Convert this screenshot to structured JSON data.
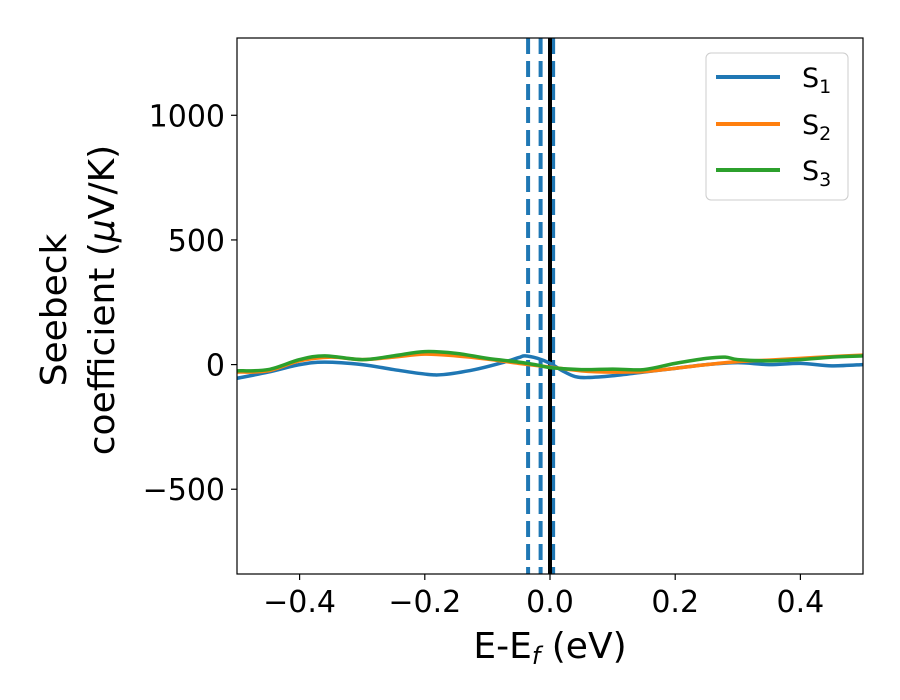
{
  "chart_data": {
    "type": "line",
    "xlabel": {
      "main": "E-E",
      "sub": "f",
      "tail": " (eV)"
    },
    "ylabel": {
      "line1": "Seebeck",
      "line2_pre": "coefficient  (",
      "line2_mu": "μ",
      "line2_post": "V/K)"
    },
    "xlim": [
      -0.5,
      0.5
    ],
    "ylim": [
      -840,
      1310
    ],
    "xticks": [
      -0.4,
      -0.2,
      0.0,
      0.2,
      0.4
    ],
    "xtick_labels": [
      "−0.4",
      "−0.2",
      "0.0",
      "0.2",
      "0.4"
    ],
    "yticks": [
      -500,
      0,
      500,
      1000
    ],
    "ytick_labels": [
      "−500",
      "0",
      "500",
      "1000"
    ],
    "legend_position": "top-right",
    "series": [
      {
        "name": "S",
        "sub": "1",
        "color": "#1f77b4",
        "x": [
          -0.5,
          -0.45,
          -0.4,
          -0.36,
          -0.3,
          -0.25,
          -0.2,
          -0.17,
          -0.12,
          -0.08,
          -0.05,
          -0.04,
          -0.02,
          0.0,
          0.02,
          0.04,
          0.06,
          0.1,
          0.15,
          0.2,
          0.25,
          0.3,
          0.35,
          0.4,
          0.45,
          0.5
        ],
        "y": [
          -55,
          -30,
          0,
          10,
          0,
          -20,
          -38,
          -40,
          -20,
          5,
          28,
          35,
          25,
          5,
          -25,
          -48,
          -52,
          -45,
          -30,
          -15,
          0,
          8,
          0,
          5,
          -5,
          0
        ]
      },
      {
        "name": "S",
        "sub": "2",
        "color": "#ff7f0e",
        "x": [
          -0.5,
          -0.45,
          -0.4,
          -0.35,
          -0.3,
          -0.25,
          -0.2,
          -0.15,
          -0.1,
          -0.05,
          0.0,
          0.05,
          0.1,
          0.15,
          0.2,
          0.25,
          0.3,
          0.35,
          0.4,
          0.45,
          0.5
        ],
        "y": [
          -30,
          -25,
          15,
          30,
          20,
          30,
          42,
          35,
          22,
          5,
          -10,
          -25,
          -30,
          -28,
          -15,
          0,
          12,
          18,
          25,
          32,
          38
        ]
      },
      {
        "name": "S",
        "sub": "3",
        "color": "#2ca02c",
        "x": [
          -0.5,
          -0.45,
          -0.4,
          -0.36,
          -0.3,
          -0.25,
          -0.2,
          -0.15,
          -0.1,
          -0.05,
          -0.02,
          0.0,
          0.05,
          0.1,
          0.15,
          0.2,
          0.25,
          0.28,
          0.3,
          0.35,
          0.4,
          0.45,
          0.5
        ],
        "y": [
          -25,
          -20,
          20,
          35,
          20,
          35,
          52,
          45,
          25,
          10,
          -2,
          -12,
          -20,
          -18,
          -20,
          5,
          25,
          30,
          20,
          15,
          20,
          30,
          35
        ]
      }
    ],
    "vlines_dashed": {
      "color": "#1f77b4",
      "x": [
        -0.035,
        -0.015,
        0.005
      ]
    },
    "vline_solid": {
      "color": "#000000",
      "x": 0.0
    }
  }
}
